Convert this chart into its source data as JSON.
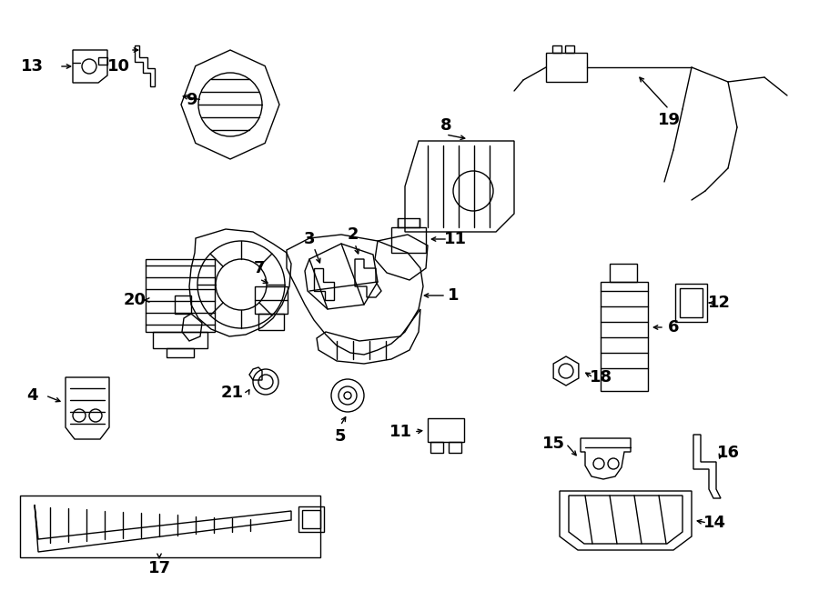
{
  "bg_color": "#ffffff",
  "line_color": "#000000",
  "fig_width": 9.0,
  "fig_height": 6.61,
  "dpi": 100,
  "lw": 1.0,
  "label_fontsize": 13,
  "xlim": [
    0,
    900
  ],
  "ylim": [
    0,
    661
  ]
}
